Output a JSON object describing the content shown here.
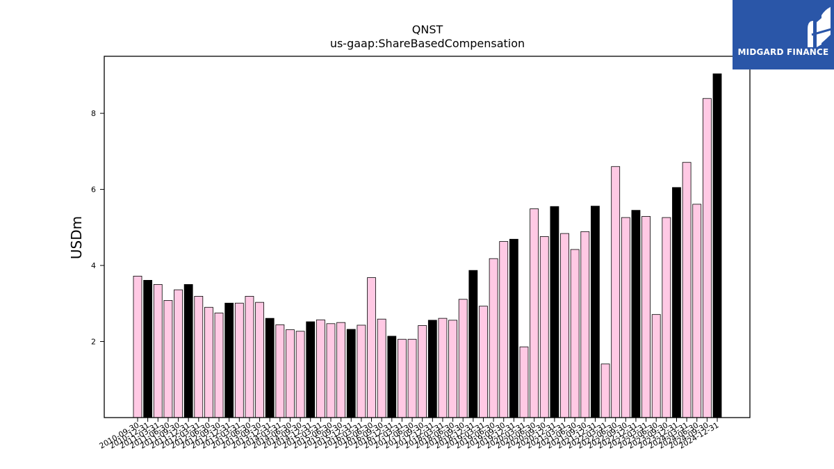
{
  "logo": {
    "text": "MIDGARD FINANCE",
    "background": "#2a56a8"
  },
  "chart_data": {
    "type": "bar",
    "title": "QNST",
    "subtitle": "us-gaap:ShareBasedCompensation",
    "ylabel": "USDm",
    "xlabel": "",
    "ylim": [
      0,
      9.5
    ],
    "yticks": [
      2,
      4,
      6,
      8
    ],
    "grid": false,
    "legend": "none",
    "colors": {
      "quarter": "#ffc9e4",
      "year_end": "#000000",
      "edge": "#000000"
    },
    "categories": [
      "2010-09-30",
      "2010-12-31",
      "2011-03-31",
      "2011-06-30",
      "2011-09-30",
      "2011-12-31",
      "2012-03-31",
      "2012-06-30",
      "2012-09-30",
      "2012-12-31",
      "2013-03-31",
      "2013-06-30",
      "2013-09-30",
      "2013-12-31",
      "2014-03-31",
      "2014-06-30",
      "2014-09-30",
      "2014-12-31",
      "2015-03-31",
      "2015-06-30",
      "2015-09-30",
      "2015-12-31",
      "2016-03-31",
      "2016-06-30",
      "2016-09-30",
      "2016-12-31",
      "2017-03-31",
      "2017-06-30",
      "2017-09-30",
      "2017-12-31",
      "2018-03-31",
      "2018-06-30",
      "2018-09-30",
      "2018-12-31",
      "2019-03-31",
      "2019-06-30",
      "2019-09-30",
      "2019-12-31",
      "2020-03-31",
      "2020-06-30",
      "2020-09-30",
      "2020-12-31",
      "2021-03-31",
      "2021-06-30",
      "2021-09-30",
      "2021-12-31",
      "2022-03-31",
      "2022-06-30",
      "2022-09-30",
      "2022-12-31",
      "2023-03-31",
      "2023-06-30",
      "2023-09-30",
      "2023-12-31",
      "2024-03-31",
      "2024-06-30",
      "2024-09-30",
      "2024-12-31"
    ],
    "values": [
      3.72,
      3.61,
      3.5,
      3.08,
      3.36,
      3.5,
      3.19,
      2.9,
      2.75,
      3.01,
      3.01,
      3.19,
      3.03,
      2.61,
      2.44,
      2.31,
      2.27,
      2.52,
      2.57,
      2.47,
      2.5,
      2.32,
      2.43,
      3.68,
      2.59,
      2.14,
      2.06,
      2.06,
      2.42,
      2.56,
      2.61,
      2.56,
      3.11,
      3.87,
      2.93,
      4.18,
      4.63,
      4.69,
      1.86,
      5.49,
      4.76,
      5.55,
      4.84,
      4.42,
      4.89,
      5.56,
      1.41,
      6.6,
      5.26,
      5.45,
      5.29,
      2.71,
      5.26,
      6.05,
      6.71,
      5.61,
      8.39,
      9.04
    ],
    "year_end_flags": [
      0,
      1,
      0,
      0,
      0,
      1,
      0,
      0,
      0,
      1,
      0,
      0,
      0,
      1,
      0,
      0,
      0,
      1,
      0,
      0,
      0,
      1,
      0,
      0,
      0,
      1,
      0,
      0,
      0,
      1,
      0,
      0,
      0,
      1,
      0,
      0,
      0,
      1,
      0,
      0,
      0,
      1,
      0,
      0,
      0,
      1,
      0,
      0,
      0,
      1,
      0,
      0,
      0,
      1,
      0,
      0,
      0,
      1
    ]
  }
}
